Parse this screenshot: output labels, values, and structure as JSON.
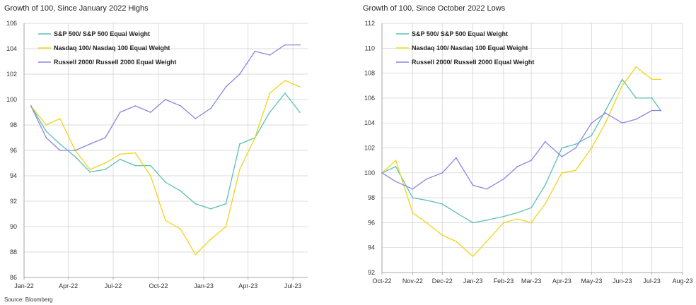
{
  "source": "Source: Bloomberg",
  "colors": {
    "sp": "#5bc0b5",
    "ndx": "#f2d31b",
    "rut": "#8a86e0",
    "grid": "#cfcfcf",
    "axis": "#999999"
  },
  "chart_data": [
    {
      "type": "line",
      "title": "Growth of 100, Since January 2022 Highs",
      "xlabel": "",
      "ylabel": "",
      "x_ticks": [
        "Jan-22",
        "Apr-22",
        "Jul-22",
        "Oct-22",
        "Jan-23",
        "Apr-23",
        "Jul-23"
      ],
      "y_ticks": [
        "106",
        "104",
        "102",
        "100",
        "98",
        "96",
        "94",
        "92",
        "90",
        "88",
        "86"
      ],
      "ylim": [
        86,
        106
      ],
      "grid": true,
      "legend": "top-left",
      "x": [
        "2022-01",
        "2022-02",
        "2022-03",
        "2022-04",
        "2022-05",
        "2022-06",
        "2022-07",
        "2022-08",
        "2022-09",
        "2022-10",
        "2022-11",
        "2022-12",
        "2023-01",
        "2023-02",
        "2023-03",
        "2023-04",
        "2023-05",
        "2023-06",
        "2023-07"
      ],
      "series": [
        {
          "name": "S&P 500/ S&P 500 Equal Weight",
          "values": [
            99.5,
            97.5,
            96.5,
            95.5,
            94.3,
            94.5,
            95.3,
            94.8,
            94.8,
            93.5,
            92.8,
            91.8,
            91.4,
            91.8,
            96.5,
            97.0,
            99.0,
            100.5,
            99.0
          ]
        },
        {
          "name": "Nasdaq 100/ Nasdaq 100 Equal Weight",
          "values": [
            99.5,
            98.0,
            98.5,
            96.0,
            94.5,
            95.0,
            95.7,
            95.8,
            94.0,
            90.5,
            89.8,
            87.8,
            89.0,
            90.0,
            94.5,
            97.0,
            100.5,
            101.5,
            101.0
          ]
        },
        {
          "name": "Russell 2000/ Russell 2000 Equal Weight",
          "values": [
            99.5,
            97.0,
            96.0,
            96.0,
            96.5,
            97.0,
            99.0,
            99.5,
            99.0,
            100.0,
            99.5,
            98.5,
            99.3,
            101.0,
            102.0,
            103.8,
            103.5,
            104.3,
            104.3
          ]
        }
      ]
    },
    {
      "type": "line",
      "title": "Growth of 100, Since October 2022 Lows",
      "xlabel": "",
      "ylabel": "",
      "x_ticks": [
        "Oct-22",
        "Nov-22",
        "Dec-22",
        "Jan-23",
        "Feb-23",
        "Mar-23",
        "Apr-23",
        "May-23",
        "Jun-23",
        "Jul-23",
        "Aug-23"
      ],
      "y_ticks": [
        "112",
        "110",
        "108",
        "106",
        "104",
        "102",
        "100",
        "98",
        "96",
        "94",
        "92"
      ],
      "ylim": [
        92,
        112
      ],
      "grid": true,
      "legend": "top-left",
      "x": [
        "2022-10-01",
        "2022-10-15",
        "2022-11-01",
        "2022-11-15",
        "2022-12-01",
        "2022-12-15",
        "2023-01-01",
        "2023-01-15",
        "2023-02-01",
        "2023-02-15",
        "2023-03-01",
        "2023-03-15",
        "2023-04-01",
        "2023-04-15",
        "2023-05-01",
        "2023-05-15",
        "2023-06-01",
        "2023-06-15",
        "2023-07-01",
        "2023-07-10"
      ],
      "series": [
        {
          "name": "S&P 500/ S&P 500 Equal Weight",
          "values": [
            100.0,
            100.5,
            98.0,
            97.8,
            97.5,
            96.8,
            96.0,
            96.2,
            96.5,
            96.8,
            97.2,
            99.0,
            102.0,
            102.3,
            103.0,
            105.0,
            107.5,
            106.0,
            106.0,
            105.0
          ]
        },
        {
          "name": "Nasdaq 100/ Nasdaq 100 Equal Weight",
          "values": [
            100.0,
            101.0,
            96.8,
            96.0,
            95.0,
            94.5,
            93.3,
            94.5,
            96.0,
            96.3,
            96.0,
            97.5,
            100.0,
            100.2,
            102.0,
            104.0,
            107.0,
            108.5,
            107.5,
            107.5
          ]
        },
        {
          "name": "Russell 2000/ Russell 2000 Equal Weight",
          "values": [
            100.0,
            99.3,
            98.7,
            99.5,
            100.0,
            101.2,
            99.0,
            98.7,
            99.5,
            100.5,
            101.0,
            102.5,
            101.3,
            102.0,
            104.0,
            104.8,
            104.0,
            104.3,
            105.0,
            105.0
          ]
        }
      ]
    }
  ]
}
